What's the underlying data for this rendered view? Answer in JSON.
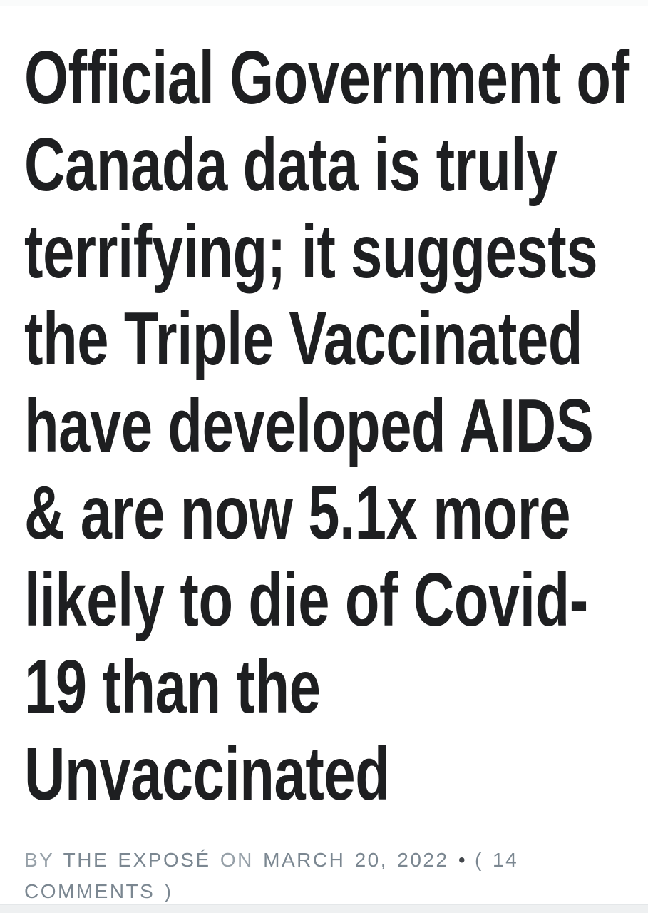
{
  "article": {
    "headline": {
      "full_text": "Official Government of Canada data is truly terrifying; it suggests the Triple Vaccinated have developed AIDS & are now 5.1x more likely to die of Covid-19 than the Unvaccinated",
      "lines": [
        "Official Government of",
        "Canada data is truly",
        "terrifying; it suggests",
        "the Triple Vaccinated",
        "have developed AIDS",
        "& are now 5.1x more",
        "likely to die of Covid-",
        "19 than the",
        "Unvaccinated"
      ],
      "color": "#1e1f21"
    },
    "byline": {
      "by_label": "BY",
      "author": "THE EXPOSÉ",
      "on_label": "ON",
      "date": "MARCH 20, 2022",
      "separator": "•",
      "comments": "( 14 COMMENTS )",
      "comments_count": "14",
      "label_color": "#96a0a8",
      "link_color": "#7b8791",
      "separator_color": "#43474c"
    }
  }
}
